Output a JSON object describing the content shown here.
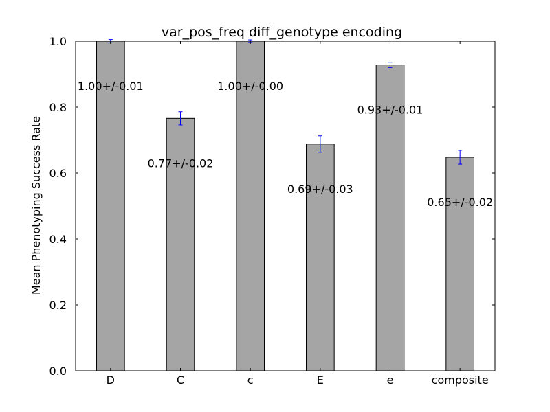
{
  "chart_data": {
    "type": "bar",
    "title": "var_pos_freq diff_genotype encoding",
    "xlabel": "",
    "ylabel": "Mean Phenotyping Success Rate",
    "categories": [
      "D",
      "C",
      "c",
      "E",
      "e",
      "composite"
    ],
    "values": [
      1.0,
      0.766,
      1.0,
      0.688,
      0.928,
      0.648
    ],
    "errors": [
      0.005,
      0.02,
      0.004,
      0.025,
      0.008,
      0.021
    ],
    "data_labels": [
      "1.00+/-0.01",
      "0.77+/-0.02",
      "1.00+/-0.00",
      "0.69+/-0.03",
      "0.93+/-0.01",
      "0.65+/-0.02"
    ],
    "ylim": [
      0,
      1.0
    ],
    "yticks": [
      "0.0",
      "0.2",
      "0.4",
      "0.6",
      "0.8",
      "1.0"
    ],
    "grid": false,
    "legend": "none",
    "colors": {
      "bar": "#a5a5a5",
      "bar_edge": "#000000",
      "errorbar": "#0000ff"
    }
  }
}
